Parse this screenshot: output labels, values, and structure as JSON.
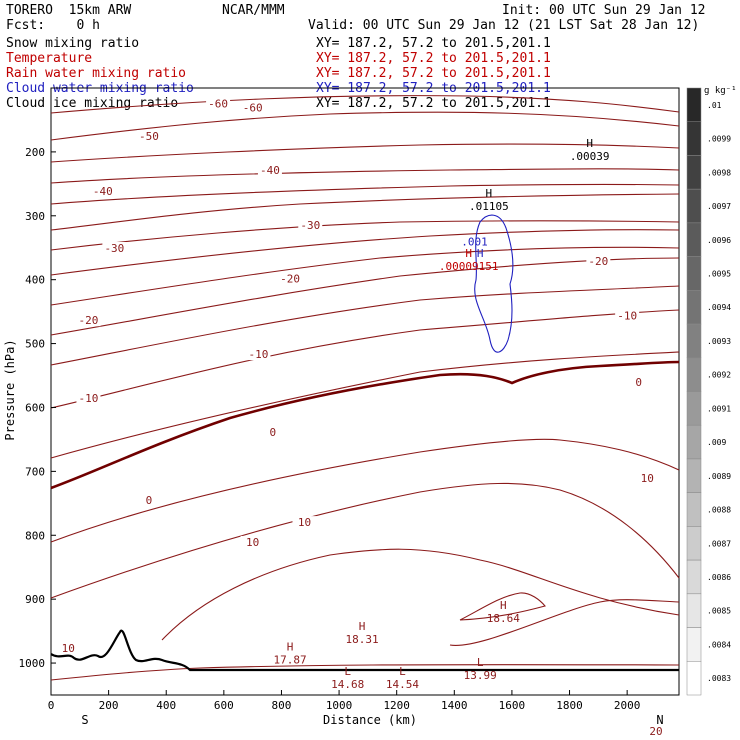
{
  "header": {
    "model": "TORERO  15km ARW",
    "center": "NCAR/MMM",
    "init": "Init: 00 UTC Sun 29 Jan 12",
    "fcst": "Fcst:    0 h",
    "valid": "Valid: 00 UTC Sun 29 Jan 12 (21 LST Sat 28 Jan 12)"
  },
  "fields": [
    {
      "name": "Snow mixing ratio",
      "range": "XY= 187.2, 57.2 to 201.5,201.1",
      "color": "#000000"
    },
    {
      "name": "Temperature",
      "range": "XY= 187.2, 57.2 to 201.5,201.1",
      "color": "#c00000"
    },
    {
      "name": "Rain water mixing ratio",
      "range": "XY= 187.2, 57.2 to 201.5,201.1",
      "color": "#c00000"
    },
    {
      "name": "Cloud water mixing ratio",
      "range": "XY= 187.2, 57.2 to 201.5,201.1",
      "color": "#2020c0"
    },
    {
      "name": "Cloud ice mixing ratio",
      "range": "XY= 187.2, 57.2 to 201.5,201.1",
      "color": "#000000"
    }
  ],
  "chart_data": {
    "type": "cross-section contour",
    "xlabel": "Distance (km)",
    "ylabel": "Pressure (hPa)",
    "xlim": [
      0,
      2180
    ],
    "ylim": [
      1050,
      100
    ],
    "x_ticks": [
      0,
      200,
      400,
      600,
      800,
      1000,
      1200,
      1400,
      1600,
      1800,
      2000
    ],
    "y_ticks": [
      200,
      300,
      400,
      500,
      600,
      700,
      800,
      900,
      1000
    ],
    "left_end": "S",
    "right_end": "N",
    "colorbar_unit": "g kg⁻¹",
    "colorbar_ticks": [
      ".01",
      ".0099",
      ".0098",
      ".0097",
      ".0096",
      ".0095",
      ".0094",
      ".0093",
      ".0092",
      ".0091",
      ".009",
      ".0089",
      ".0088",
      ".0087",
      ".0086",
      ".0085",
      ".0084",
      ".0083"
    ],
    "temperature_contours": [
      {
        "label": "-60",
        "x": 580,
        "p": 126
      },
      {
        "label": "-60",
        "x": 700,
        "p": 132
      },
      {
        "label": "-50",
        "x": 340,
        "p": 177
      },
      {
        "label": "-40",
        "x": 180,
        "p": 263
      },
      {
        "label": "-40",
        "x": 760,
        "p": 230
      },
      {
        "label": "-30",
        "x": 900,
        "p": 316
      },
      {
        "label": "-30",
        "x": 220,
        "p": 352
      },
      {
        "label": "-20",
        "x": 830,
        "p": 400
      },
      {
        "label": "-20",
        "x": 130,
        "p": 465
      },
      {
        "label": "-20",
        "x": 1900,
        "p": 372
      },
      {
        "label": "-10",
        "x": 720,
        "p": 518
      },
      {
        "label": "-10",
        "x": 130,
        "p": 587
      },
      {
        "label": "-10",
        "x": 2000,
        "p": 458
      },
      {
        "label": "0",
        "x": 770,
        "p": 640
      },
      {
        "label": "0",
        "x": 340,
        "p": 746
      },
      {
        "label": "0",
        "x": 2040,
        "p": 562
      },
      {
        "label": "10",
        "x": 700,
        "p": 812
      },
      {
        "label": "10",
        "x": 880,
        "p": 781
      },
      {
        "label": "10",
        "x": 2070,
        "p": 712
      },
      {
        "label": "10",
        "x": 60,
        "p": 978
      },
      {
        "label": "20",
        "x": 2100,
        "p": 1108
      }
    ],
    "extrema": [
      {
        "type": "H",
        "value": "18.64",
        "x": 1570,
        "p": 931
      },
      {
        "type": "H",
        "value": "18.31",
        "x": 1080,
        "p": 964
      },
      {
        "type": "H",
        "value": "17.87",
        "x": 830,
        "p": 996
      },
      {
        "type": "L",
        "value": "14.68",
        "x": 1030,
        "p": 1034
      },
      {
        "type": "L",
        "value": "14.54",
        "x": 1220,
        "p": 1034
      },
      {
        "type": "L",
        "value": "13.99",
        "x": 1490,
        "p": 1020
      }
    ],
    "hydrometeor_labels": [
      {
        "label": "H",
        "value": ".00039",
        "x": 1870,
        "p": 208,
        "field": "Cloud ice mixing ratio"
      },
      {
        "label": "H",
        "value": ".01105",
        "x": 1520,
        "p": 286,
        "field": "Snow mixing ratio"
      },
      {
        "label": "",
        "value": ".001",
        "x": 1470,
        "p": 342,
        "field": "Cloud water mixing ratio"
      },
      {
        "label": "H",
        "value": "",
        "x": 1490,
        "p": 380,
        "field": "Cloud water mixing ratio"
      },
      {
        "label": "H",
        "value": ".00009151",
        "x": 1450,
        "p": 380,
        "field": "Rain water mixing ratio"
      }
    ]
  }
}
